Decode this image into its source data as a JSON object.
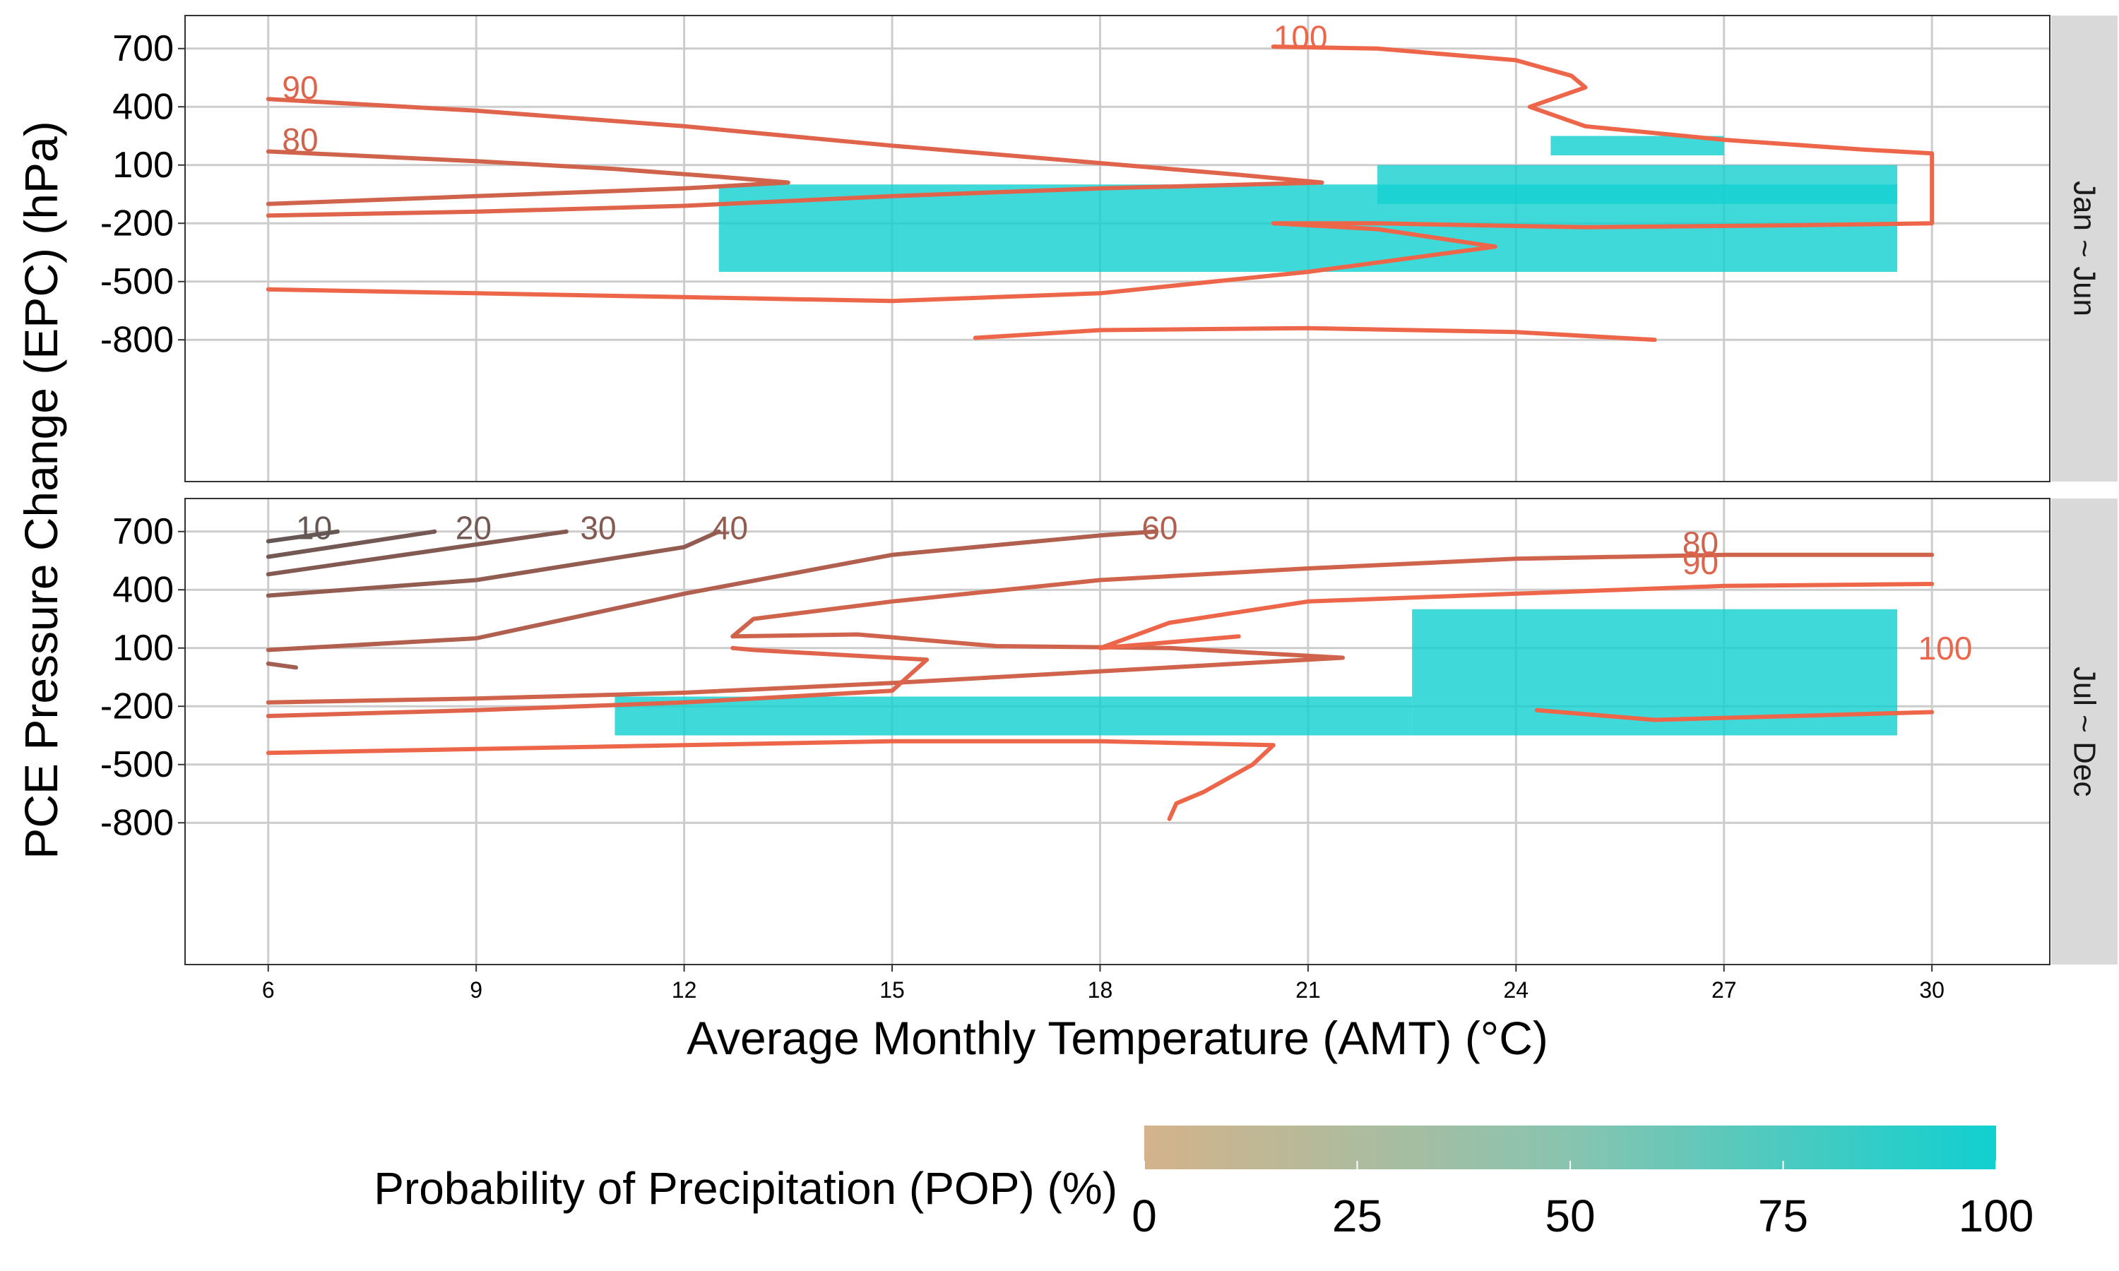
{
  "chart_data": {
    "type": "heatmap",
    "title": "",
    "xlabel": "Average Monthly Temperature (AMT) (°C)",
    "ylabel": "PCE Pressure Change (EPC) (hPa)",
    "x_ticks": [
      6,
      9,
      12,
      15,
      18,
      21,
      24,
      27,
      30
    ],
    "y_ticks": [
      700,
      400,
      100,
      -200,
      -500,
      -800
    ],
    "xlim": [
      4.8,
      31.7
    ],
    "ylim": [
      -1530,
      870
    ],
    "grid": true,
    "facets": [
      {
        "label": "Jan ~ Jun",
        "dense_cells": [
          {
            "x": [
              12.5,
              29.5
            ],
            "y": [
              -450,
              0
            ],
            "pop": 100
          },
          {
            "x": [
              24.5,
              27.0
            ],
            "y": [
              150,
              250
            ],
            "pop": 100
          },
          {
            "x": [
              22.0,
              29.5
            ],
            "y": [
              -100,
              100
            ],
            "pop": 98
          }
        ],
        "contours": [
          {
            "level": 90,
            "label": "90",
            "label_at": [
              6.2,
              500
            ],
            "path": [
              [
                6,
                440
              ],
              [
                9,
                380
              ],
              [
                12,
                300
              ],
              [
                15,
                200
              ],
              [
                18,
                110
              ],
              [
                20,
                50
              ],
              [
                21.2,
                10
              ],
              [
                18,
                -20
              ],
              [
                15,
                -60
              ],
              [
                12,
                -110
              ],
              [
                9,
                -140
              ],
              [
                6,
                -160
              ]
            ]
          },
          {
            "level": 80,
            "label": "80",
            "label_at": [
              6.2,
              230
            ],
            "path": [
              [
                6,
                170
              ],
              [
                9,
                120
              ],
              [
                11,
                80
              ],
              [
                12.5,
                40
              ],
              [
                13.5,
                10
              ],
              [
                12,
                -20
              ],
              [
                9,
                -60
              ],
              [
                6,
                -100
              ]
            ]
          },
          {
            "level": 100,
            "label": "100",
            "label_at": [
              20.5,
              760
            ],
            "path": [
              [
                20.5,
                710
              ],
              [
                22,
                700
              ],
              [
                24,
                640
              ],
              [
                24.8,
                560
              ],
              [
                25,
                500
              ],
              [
                24.2,
                400
              ],
              [
                25,
                300
              ],
              [
                27,
                230
              ],
              [
                29,
                180
              ],
              [
                30,
                160
              ],
              [
                30,
                -200
              ],
              [
                28,
                -210
              ],
              [
                25,
                -220
              ],
              [
                22,
                -200
              ],
              [
                20.5,
                -200
              ],
              [
                22,
                -230
              ],
              [
                23.7,
                -320
              ],
              [
                21,
                -450
              ],
              [
                18,
                -560
              ],
              [
                15,
                -600
              ],
              [
                12,
                -580
              ],
              [
                9,
                -560
              ],
              [
                6,
                -540
              ]
            ]
          },
          {
            "level": 100,
            "label": "",
            "label_at": null,
            "path": [
              [
                16.2,
                -790
              ],
              [
                18,
                -750
              ],
              [
                21,
                -740
              ],
              [
                24,
                -760
              ],
              [
                26,
                -800
              ]
            ]
          }
        ]
      },
      {
        "label": "Jul ~ Dec",
        "dense_cells": [
          {
            "x": [
              22.5,
              29.5
            ],
            "y": [
              -350,
              300
            ],
            "pop": 100
          },
          {
            "x": [
              11.0,
              22.5
            ],
            "y": [
              -350,
              -150
            ],
            "pop": 100
          }
        ],
        "contours": [
          {
            "level": 10,
            "label": "10",
            "label_at": [
              6.4,
              720
            ],
            "path": [
              [
                6,
                650
              ],
              [
                7,
                700
              ]
            ]
          },
          {
            "level": 20,
            "label": "20",
            "label_at": [
              8.7,
              720
            ],
            "path": [
              [
                6,
                570
              ],
              [
                8.4,
                700
              ]
            ]
          },
          {
            "level": 30,
            "label": "30",
            "label_at": [
              10.5,
              720
            ],
            "path": [
              [
                6,
                480
              ],
              [
                10.3,
                700
              ]
            ]
          },
          {
            "level": 40,
            "label": "40",
            "label_at": [
              12.4,
              720
            ],
            "path": [
              [
                6,
                370
              ],
              [
                9,
                450
              ],
              [
                12,
                620
              ],
              [
                12.5,
                700
              ]
            ]
          },
          {
            "level": 60,
            "label": "60",
            "label_at": [
              18.6,
              720
            ],
            "path": [
              [
                6,
                90
              ],
              [
                9,
                150
              ],
              [
                12,
                380
              ],
              [
                15,
                580
              ],
              [
                18,
                680
              ],
              [
                18.8,
                700
              ]
            ]
          },
          {
            "level": 80,
            "label": "80",
            "label_at": [
              26.4,
              640
            ],
            "path": [
              [
                6,
                -180
              ],
              [
                9,
                -160
              ],
              [
                12,
                -130
              ],
              [
                15,
                -80
              ],
              [
                18,
                -20
              ],
              [
                20,
                20
              ],
              [
                21.5,
                50
              ],
              [
                19,
                100
              ],
              [
                16.5,
                110
              ],
              [
                14.5,
                170
              ],
              [
                12.7,
                160
              ],
              [
                13,
                250
              ],
              [
                15,
                340
              ],
              [
                18,
                450
              ],
              [
                21,
                510
              ],
              [
                24,
                560
              ],
              [
                27,
                580
              ],
              [
                30,
                580
              ]
            ]
          },
          {
            "level": 90,
            "label": "90",
            "label_at": [
              26.4,
              540
            ],
            "path": [
              [
                6,
                -250
              ],
              [
                9,
                -220
              ],
              [
                12,
                -180
              ],
              [
                15,
                -120
              ],
              [
                15.5,
                40
              ],
              [
                13,
                90
              ],
              [
                12.7,
                100
              ]
            ]
          },
          {
            "level": 100,
            "label": "100",
            "label_at": [
              29.8,
              100
            ],
            "path": [
              [
                20,
                160
              ],
              [
                18,
                100
              ],
              [
                19,
                230
              ],
              [
                21,
                340
              ],
              [
                24,
                380
              ],
              [
                27,
                420
              ],
              [
                30,
                430
              ]
            ]
          },
          {
            "level": 100,
            "label": "",
            "label_at": null,
            "path": [
              [
                24.3,
                -220
              ],
              [
                26,
                -270
              ],
              [
                28,
                -250
              ],
              [
                30,
                -230
              ]
            ]
          },
          {
            "level": 50,
            "label": "",
            "label_at": null,
            "path": [
              [
                6,
                20
              ],
              [
                6.4,
                0
              ]
            ]
          },
          {
            "level": 100,
            "label": "",
            "label_at": null,
            "path": [
              [
                6,
                -440
              ],
              [
                9,
                -420
              ],
              [
                12,
                -400
              ],
              [
                15,
                -380
              ],
              [
                18,
                -380
              ],
              [
                20.5,
                -400
              ],
              [
                20.2,
                -500
              ],
              [
                19.5,
                -640
              ],
              [
                19.1,
                -700
              ],
              [
                19,
                -780
              ]
            ]
          }
        ]
      }
    ],
    "legend": {
      "title": "Probability of Precipitation (POP) (%)",
      "placement": "bottom",
      "ticks": [
        0,
        25,
        50,
        75,
        100
      ],
      "colors": [
        "#d4b38b",
        "#10d0d0"
      ]
    }
  }
}
